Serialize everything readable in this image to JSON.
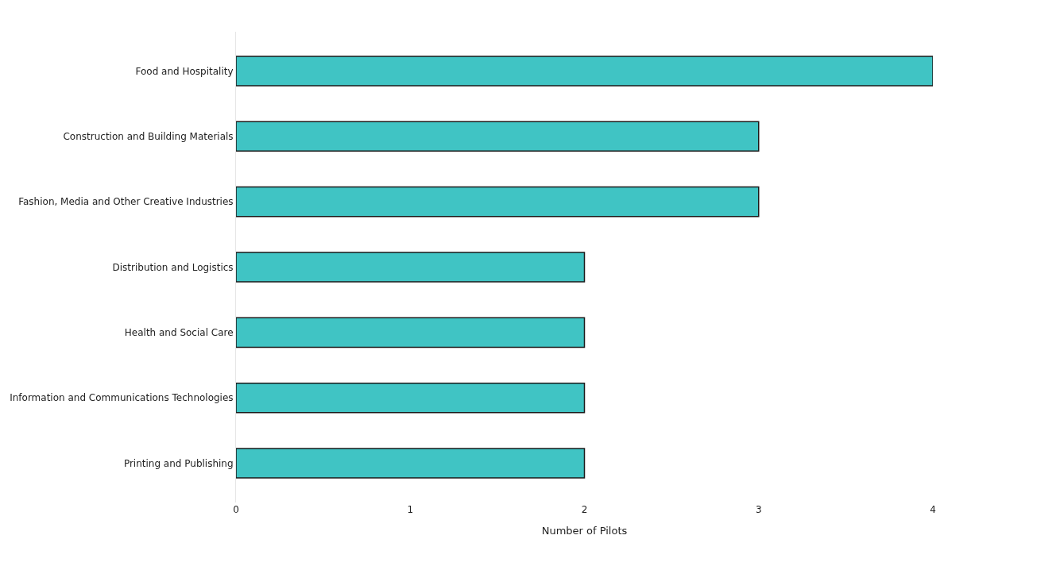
{
  "chart_data": {
    "type": "bar",
    "orientation": "horizontal",
    "xlabel": "Number of Pilots",
    "categories": [
      "Food and Hospitality",
      "Construction and Building Materials",
      "Fashion, Media and Other Creative Industries",
      "Distribution and Logistics",
      "Health and Social Care",
      "Information and Communications Technologies",
      "Printing and Publishing"
    ],
    "values": [
      4,
      3,
      3,
      2,
      2,
      2,
      2
    ],
    "color": "#40c4c4",
    "xlim": [
      0,
      4
    ],
    "xticks": [
      0,
      1,
      2,
      3,
      4
    ]
  }
}
